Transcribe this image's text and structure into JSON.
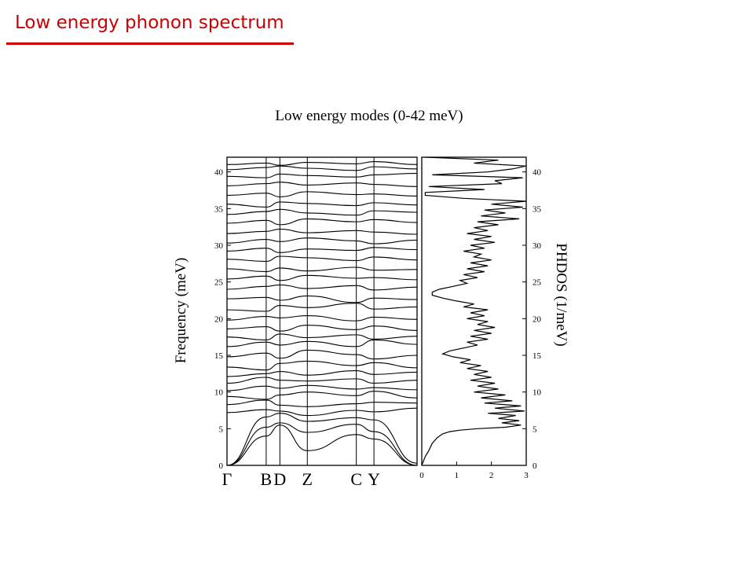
{
  "slide": {
    "title": "Low energy phonon spectrum",
    "accent": "#cc0000"
  },
  "chart_data": [
    {
      "type": "line",
      "panel": "dispersion",
      "title": "Low energy modes (0-42 meV)",
      "ylabel": "Frequency (meV)",
      "ylim": [
        0,
        42
      ],
      "yticks": [
        "0",
        "5",
        "10",
        "15",
        "20",
        "25",
        "30",
        "35",
        "40"
      ],
      "kpoints": [
        {
          "label": "Γ",
          "pos": 0.0
        },
        {
          "label": "B",
          "pos": 1.0
        },
        {
          "label": "D",
          "pos": 1.35
        },
        {
          "label": "Z",
          "pos": 2.05
        },
        {
          "label": "C",
          "pos": 3.3
        },
        {
          "label": "Y",
          "pos": 3.75
        },
        {
          "label": "",
          "pos": 4.85
        }
      ],
      "series": [
        {
          "values": [
            0,
            4.0,
            5.5,
            2.0,
            4.2,
            3.6,
            0
          ]
        },
        {
          "values": [
            0,
            5.2,
            5.8,
            4.5,
            5.6,
            4.6,
            0
          ]
        },
        {
          "values": [
            0,
            6.6,
            7.1,
            6.0,
            6.5,
            6.2,
            0.3
          ]
        },
        {
          "values": [
            7.2,
            7.6,
            7.4,
            6.8,
            7.5,
            7.3,
            7.8
          ]
        },
        {
          "values": [
            8.3,
            8.9,
            8.2,
            8.0,
            8.4,
            8.6,
            8.5
          ]
        },
        {
          "values": [
            9.4,
            9.0,
            9.6,
            10.0,
            9.5,
            10.1,
            9.2
          ]
        },
        {
          "values": [
            10.2,
            10.8,
            10.5,
            10.9,
            10.4,
            10.6,
            10.3
          ]
        },
        {
          "values": [
            11.2,
            12.0,
            11.6,
            11.5,
            11.8,
            11.2,
            11.6
          ]
        },
        {
          "values": [
            12.1,
            12.5,
            12.8,
            12.3,
            12.9,
            12.4,
            12.7
          ]
        },
        {
          "values": [
            13.4,
            13.0,
            13.9,
            14.2,
            13.6,
            14.0,
            13.3
          ]
        },
        {
          "values": [
            14.8,
            15.3,
            14.6,
            15.7,
            15.1,
            14.5,
            15.0
          ]
        },
        {
          "values": [
            16.2,
            16.8,
            16.4,
            16.9,
            16.2,
            17.1,
            16.5
          ]
        },
        {
          "values": [
            17.5,
            17.1,
            17.9,
            17.4,
            17.8,
            17.2,
            17.6
          ]
        },
        {
          "values": [
            18.6,
            18.9,
            18.3,
            19.1,
            18.5,
            19.0,
            18.4
          ]
        },
        {
          "values": [
            19.8,
            20.3,
            20.1,
            20.4,
            19.7,
            20.2,
            19.9
          ]
        },
        {
          "values": [
            21.2,
            21.0,
            21.8,
            21.5,
            22.1,
            21.3,
            21.6
          ]
        },
        {
          "values": [
            22.7,
            22.9,
            22.5,
            23.1,
            22.2,
            22.8,
            22.6
          ]
        },
        {
          "values": [
            24.0,
            24.4,
            24.6,
            24.1,
            24.5,
            23.9,
            24.3
          ]
        },
        {
          "values": [
            25.4,
            25.8,
            25.2,
            25.9,
            25.5,
            25.6,
            25.3
          ]
        },
        {
          "values": [
            26.8,
            26.4,
            26.9,
            26.5,
            27.0,
            26.6,
            26.7
          ]
        },
        {
          "values": [
            28.1,
            27.8,
            28.5,
            28.3,
            27.9,
            28.4,
            28.0
          ]
        },
        {
          "values": [
            29.2,
            29.6,
            29.0,
            29.5,
            29.3,
            29.7,
            29.4
          ]
        },
        {
          "values": [
            30.3,
            30.8,
            30.5,
            31.0,
            30.6,
            30.2,
            30.7
          ]
        },
        {
          "values": [
            31.6,
            31.9,
            32.2,
            31.7,
            32.0,
            31.8,
            31.5
          ]
        },
        {
          "values": [
            33.0,
            33.4,
            32.8,
            33.6,
            33.2,
            33.5,
            33.1
          ]
        },
        {
          "values": [
            34.2,
            34.6,
            34.9,
            34.4,
            34.1,
            34.7,
            34.5
          ]
        },
        {
          "values": [
            35.6,
            35.2,
            35.9,
            35.7,
            35.4,
            35.8,
            35.5
          ]
        },
        {
          "values": [
            36.8,
            37.1,
            36.6,
            37.3,
            36.9,
            37.0,
            36.7
          ]
        },
        {
          "values": [
            38.1,
            38.4,
            38.6,
            38.2,
            38.5,
            38.3,
            38.0
          ]
        },
        {
          "values": [
            39.4,
            39.2,
            39.7,
            39.5,
            39.3,
            39.6,
            39.8
          ]
        },
        {
          "values": [
            40.3,
            40.6,
            40.8,
            40.5,
            40.2,
            40.7,
            40.4
          ]
        },
        {
          "values": [
            41.0,
            41.2,
            40.9,
            41.3,
            41.1,
            41.4,
            41.0
          ]
        }
      ]
    },
    {
      "type": "line",
      "panel": "density-of-states",
      "ylabel": "PHDOS (1/meV)",
      "xlim": [
        0,
        3
      ],
      "ylim": [
        0,
        42
      ],
      "xticks": [
        "0",
        "1",
        "2",
        "3"
      ],
      "yticks": [
        "0",
        "5",
        "10",
        "15",
        "20",
        "25",
        "30",
        "35",
        "40"
      ],
      "points": [
        [
          0,
          0.0
        ],
        [
          0.05,
          0.6
        ],
        [
          0.1,
          1.2
        ],
        [
          0.2,
          2.0
        ],
        [
          0.3,
          3.0
        ],
        [
          0.45,
          3.8
        ],
        [
          0.6,
          4.3
        ],
        [
          0.8,
          4.6
        ],
        [
          1.1,
          4.8
        ],
        [
          1.6,
          5.0
        ],
        [
          2.4,
          5.2
        ],
        [
          2.85,
          5.5
        ],
        [
          2.3,
          5.8
        ],
        [
          2.8,
          6.1
        ],
        [
          2.2,
          6.4
        ],
        [
          2.7,
          6.8
        ],
        [
          1.9,
          7.1
        ],
        [
          2.95,
          7.4
        ],
        [
          2.1,
          7.8
        ],
        [
          2.85,
          8.1
        ],
        [
          1.8,
          8.5
        ],
        [
          2.6,
          8.8
        ],
        [
          1.7,
          9.2
        ],
        [
          2.4,
          9.6
        ],
        [
          1.5,
          10.0
        ],
        [
          2.2,
          10.4
        ],
        [
          1.6,
          10.8
        ],
        [
          2.1,
          11.2
        ],
        [
          1.4,
          11.6
        ],
        [
          2.0,
          12.0
        ],
        [
          1.5,
          12.4
        ],
        [
          1.9,
          12.8
        ],
        [
          1.3,
          13.2
        ],
        [
          1.7,
          13.6
        ],
        [
          1.1,
          14.0
        ],
        [
          1.4,
          14.4
        ],
        [
          0.9,
          14.8
        ],
        [
          0.6,
          15.2
        ],
        [
          0.8,
          15.6
        ],
        [
          1.2,
          16.0
        ],
        [
          1.6,
          16.4
        ],
        [
          1.3,
          16.8
        ],
        [
          1.9,
          17.2
        ],
        [
          1.4,
          17.6
        ],
        [
          2.0,
          18.0
        ],
        [
          1.5,
          18.4
        ],
        [
          2.1,
          18.8
        ],
        [
          1.6,
          19.2
        ],
        [
          1.9,
          19.6
        ],
        [
          1.3,
          20.0
        ],
        [
          1.8,
          20.4
        ],
        [
          1.4,
          20.8
        ],
        [
          1.9,
          21.2
        ],
        [
          1.2,
          21.6
        ],
        [
          1.5,
          22.0
        ],
        [
          1.0,
          22.4
        ],
        [
          0.6,
          22.8
        ],
        [
          0.3,
          23.2
        ],
        [
          0.3,
          23.6
        ],
        [
          0.5,
          24.0
        ],
        [
          0.9,
          24.4
        ],
        [
          1.3,
          24.8
        ],
        [
          1.1,
          25.2
        ],
        [
          1.6,
          25.6
        ],
        [
          1.2,
          26.0
        ],
        [
          1.8,
          26.4
        ],
        [
          1.3,
          26.8
        ],
        [
          1.9,
          27.2
        ],
        [
          1.4,
          27.6
        ],
        [
          2.0,
          28.0
        ],
        [
          1.5,
          28.4
        ],
        [
          1.7,
          28.8
        ],
        [
          1.2,
          29.2
        ],
        [
          1.8,
          29.6
        ],
        [
          1.4,
          30.0
        ],
        [
          2.1,
          30.4
        ],
        [
          1.5,
          30.8
        ],
        [
          2.0,
          31.2
        ],
        [
          1.3,
          31.6
        ],
        [
          1.9,
          32.0
        ],
        [
          1.5,
          32.4
        ],
        [
          2.2,
          32.8
        ],
        [
          1.6,
          33.2
        ],
        [
          2.8,
          33.6
        ],
        [
          1.7,
          34.0
        ],
        [
          2.4,
          34.4
        ],
        [
          1.8,
          34.8
        ],
        [
          2.9,
          35.2
        ],
        [
          2.0,
          35.6
        ],
        [
          3.0,
          36.0
        ],
        [
          1.2,
          36.4
        ],
        [
          0.1,
          36.8
        ],
        [
          0.1,
          37.2
        ],
        [
          1.8,
          37.6
        ],
        [
          0.2,
          38.0
        ],
        [
          2.3,
          38.4
        ],
        [
          2.1,
          38.8
        ],
        [
          2.9,
          39.2
        ],
        [
          0.3,
          39.6
        ],
        [
          1.9,
          40.0
        ],
        [
          2.6,
          40.4
        ],
        [
          3.0,
          40.8
        ],
        [
          1.5,
          41.2
        ],
        [
          2.2,
          41.6
        ],
        [
          0.1,
          42.0
        ]
      ]
    }
  ]
}
